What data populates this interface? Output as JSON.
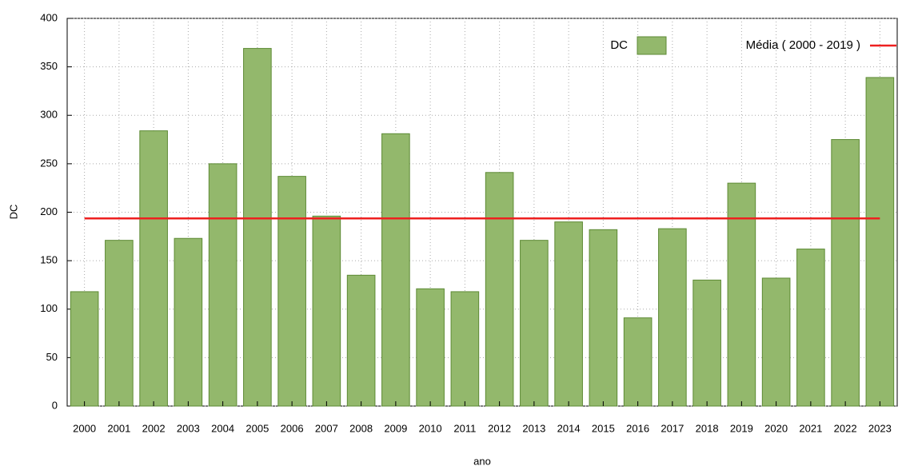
{
  "chart_data": {
    "type": "bar",
    "x_label": "ano",
    "y_label": "DC",
    "categories": [
      "2000",
      "2001",
      "2002",
      "2003",
      "2004",
      "2005",
      "2006",
      "2007",
      "2008",
      "2009",
      "2010",
      "2011",
      "2012",
      "2013",
      "2014",
      "2015",
      "2016",
      "2017",
      "2018",
      "2019",
      "2020",
      "2021",
      "2022",
      "2023"
    ],
    "series": [
      {
        "name": "DC",
        "color": "#93b86c",
        "values": [
          118,
          171,
          284,
          173,
          250,
          369,
          237,
          196,
          135,
          281,
          121,
          118,
          241,
          171,
          190,
          182,
          91,
          183,
          130,
          230,
          132,
          162,
          275,
          339
        ]
      }
    ],
    "reference_line": {
      "name": "Média ( 2000 - 2019 )",
      "color": "#ee2020",
      "value": 193.6
    },
    "ylim": [
      0,
      400
    ],
    "yticks": [
      0,
      50,
      100,
      150,
      200,
      250,
      300,
      350,
      400
    ],
    "grid": true,
    "legend": "top-right"
  }
}
